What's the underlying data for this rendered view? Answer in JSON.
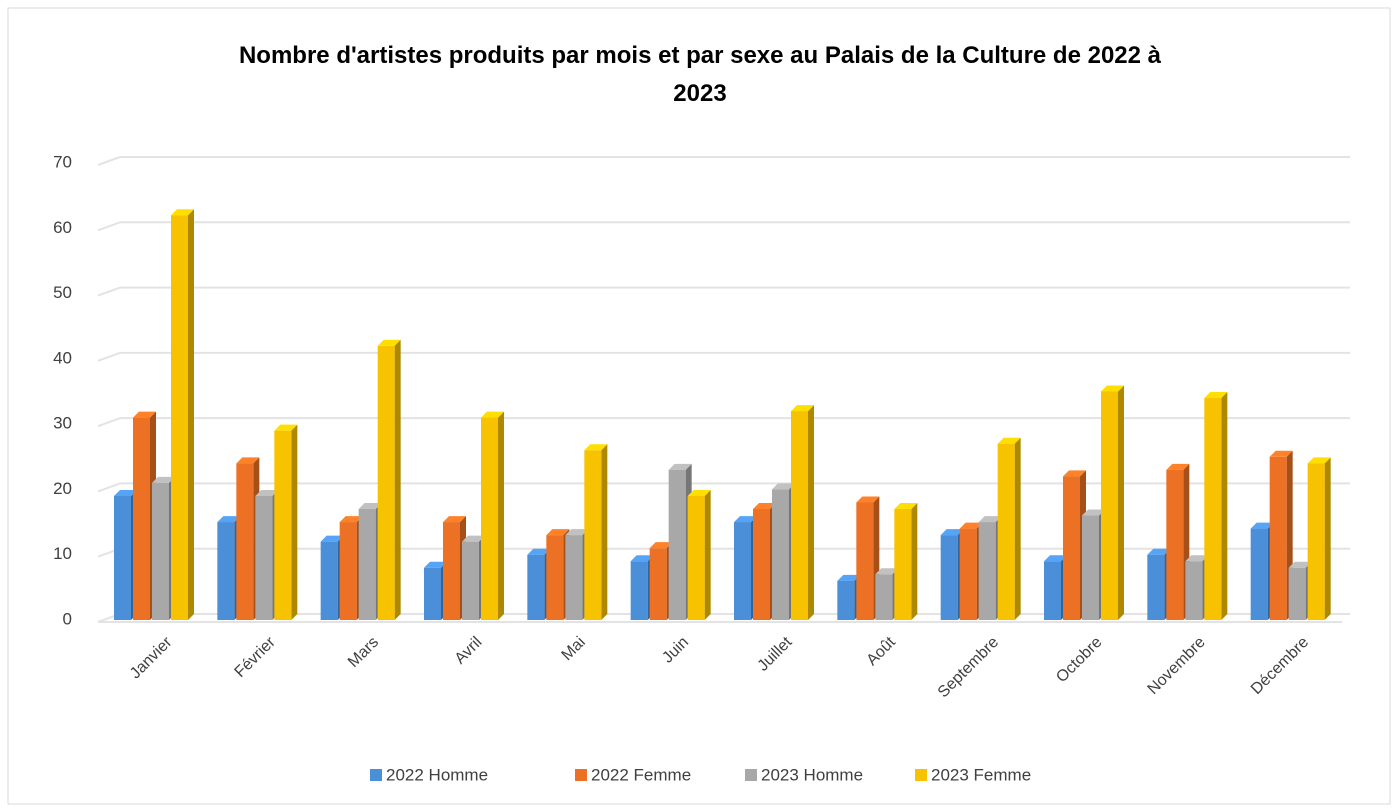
{
  "chart_data": {
    "type": "bar3d",
    "title": "Nombre d'artistes produits par mois et par sexe au Palais de la Culture  de 2022 à 2023",
    "categories": [
      "Janvier",
      "Février",
      "Mars",
      "Avril",
      "Mai",
      "Juin",
      "Juillet",
      "Août",
      "Septembre",
      "Octobre",
      "Novembre",
      "Décembre"
    ],
    "series": [
      {
        "name": "2022 Homme",
        "color": "#4a8fd8",
        "values": [
          19,
          15,
          12,
          8,
          10,
          9,
          15,
          6,
          13,
          9,
          10,
          14
        ]
      },
      {
        "name": "2022 Femme",
        "color": "#ec7124",
        "values": [
          31,
          24,
          15,
          15,
          13,
          11,
          17,
          18,
          14,
          22,
          23,
          25
        ]
      },
      {
        "name": "2023 Homme",
        "color": "#a8a8a8",
        "values": [
          21,
          19,
          17,
          12,
          13,
          23,
          20,
          7,
          15,
          16,
          9,
          8
        ]
      },
      {
        "name": "2023 Femme",
        "color": "#f7c200",
        "values": [
          62,
          29,
          42,
          31,
          26,
          19,
          32,
          17,
          27,
          35,
          34,
          24
        ]
      }
    ],
    "ylim": [
      0,
      70
    ],
    "yticks": [
      0,
      10,
      20,
      30,
      40,
      50,
      60,
      70
    ],
    "grid": true,
    "legend": "bottom"
  }
}
